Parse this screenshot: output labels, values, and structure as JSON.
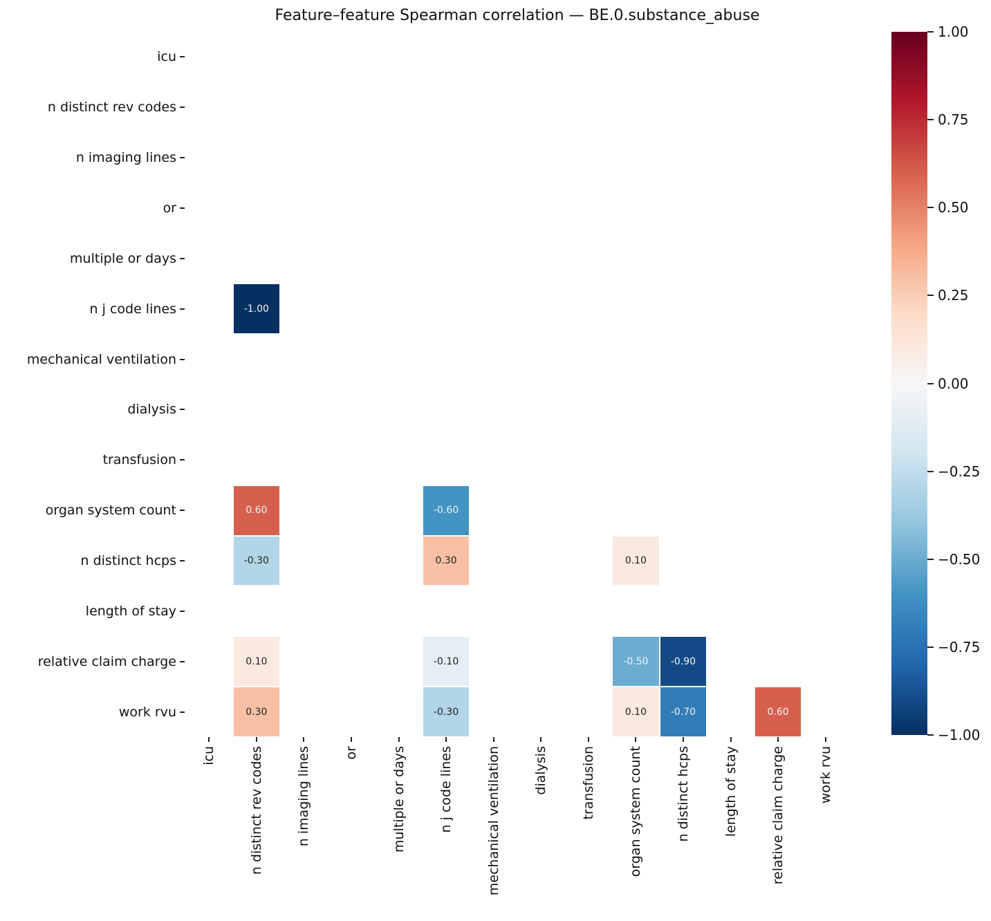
{
  "chart_data": {
    "type": "heatmap",
    "title": "Feature–feature Spearman correlation — BE.0.substance_abuse",
    "features": [
      "icu",
      "n distinct rev codes",
      "n imaging lines",
      "or",
      "multiple or days",
      "n j code lines",
      "mechanical ventilation",
      "dialysis",
      "transfusion",
      "organ system count",
      "n distinct hcps",
      "length of stay",
      "relative claim charge",
      "work rvu"
    ],
    "x_axis_labels": [
      "icu",
      "n distinct rev codes",
      "n imaging lines",
      "or",
      "multiple or days",
      "n j code lines",
      "mechanical ventilation",
      "dialysis",
      "transfusion",
      "organ system count",
      "n distinct hcps",
      "length of stay",
      "relative claim charge",
      "work rvu"
    ],
    "cells": [
      {
        "row": "n j code lines",
        "col": "n distinct rev codes",
        "value": -1.0,
        "label": "-1.00"
      },
      {
        "row": "organ system count",
        "col": "n distinct rev codes",
        "value": 0.6,
        "label": "0.60"
      },
      {
        "row": "organ system count",
        "col": "n j code lines",
        "value": -0.6,
        "label": "-0.60"
      },
      {
        "row": "n distinct hcps",
        "col": "n distinct rev codes",
        "value": -0.3,
        "label": "-0.30"
      },
      {
        "row": "n distinct hcps",
        "col": "n j code lines",
        "value": 0.3,
        "label": "0.30"
      },
      {
        "row": "n distinct hcps",
        "col": "organ system count",
        "value": 0.1,
        "label": "0.10"
      },
      {
        "row": "relative claim charge",
        "col": "n distinct rev codes",
        "value": 0.1,
        "label": "0.10"
      },
      {
        "row": "relative claim charge",
        "col": "n j code lines",
        "value": -0.1,
        "label": "-0.10"
      },
      {
        "row": "relative claim charge",
        "col": "organ system count",
        "value": -0.5,
        "label": "-0.50"
      },
      {
        "row": "relative claim charge",
        "col": "n distinct hcps",
        "value": -0.9,
        "label": "-0.90"
      },
      {
        "row": "work rvu",
        "col": "n distinct rev codes",
        "value": 0.3,
        "label": "0.30"
      },
      {
        "row": "work rvu",
        "col": "n j code lines",
        "value": -0.3,
        "label": "-0.30"
      },
      {
        "row": "work rvu",
        "col": "organ system count",
        "value": 0.1,
        "label": "0.10"
      },
      {
        "row": "work rvu",
        "col": "n distinct hcps",
        "value": -0.7,
        "label": "-0.70"
      },
      {
        "row": "work rvu",
        "col": "relative claim charge",
        "value": 0.6,
        "label": "0.60"
      }
    ],
    "vmin": -1.0,
    "vmax": 1.0,
    "colormap": {
      "name": "RdBu_r",
      "stops_high_to_low": [
        "#67001f",
        "#b2182b",
        "#d6604d",
        "#f4a582",
        "#fddbc7",
        "#f7f7f7",
        "#d1e5f0",
        "#92c5de",
        "#4393c3",
        "#2166ac",
        "#053061"
      ]
    },
    "annotation_text_light": "#f2f2f2",
    "annotation_text_dark": "#222222",
    "colorbar_ticks": [
      {
        "value": 1.0,
        "label": "1.00"
      },
      {
        "value": 0.75,
        "label": "0.75"
      },
      {
        "value": 0.5,
        "label": "0.50"
      },
      {
        "value": 0.25,
        "label": "0.25"
      },
      {
        "value": 0.0,
        "label": "0.00"
      },
      {
        "value": -0.25,
        "label": "−0.25"
      },
      {
        "value": -0.5,
        "label": "−0.50"
      },
      {
        "value": -0.75,
        "label": "−0.75"
      },
      {
        "value": -1.0,
        "label": "−1.00"
      }
    ],
    "legend_position": "right",
    "grid": false
  }
}
